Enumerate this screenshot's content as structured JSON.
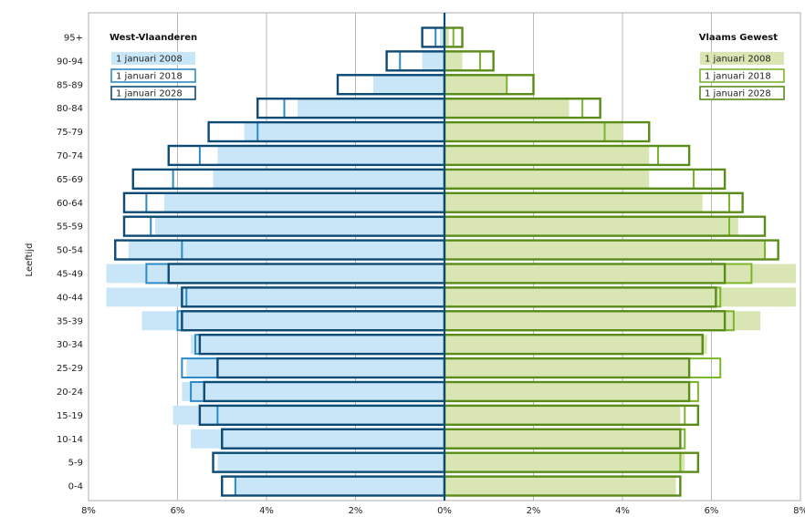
{
  "chart_data": {
    "type": "bar",
    "subtype": "population-pyramid",
    "ylabel": "Leeftijd",
    "categories": [
      "0-4",
      "5-9",
      "10-14",
      "15-19",
      "20-24",
      "25-29",
      "30-34",
      "35-39",
      "40-44",
      "45-49",
      "50-54",
      "55-59",
      "60-64",
      "65-69",
      "70-74",
      "75-79",
      "80-84",
      "85-89",
      "90-94",
      "95+"
    ],
    "x_ticks": [
      "8%",
      "6%",
      "4%",
      "2%",
      "0%",
      "2%",
      "4%",
      "6%",
      "8%"
    ],
    "xlim": [
      -8,
      8
    ],
    "grid": true,
    "left": {
      "title": "West-Vlaanderen",
      "legend_position": "top-left",
      "series": [
        {
          "name": "1 januari 2008",
          "style": "filled",
          "color": "#c9e6f8",
          "values": [
            4.7,
            5.1,
            5.7,
            6.1,
            5.9,
            5.8,
            5.7,
            6.8,
            7.6,
            7.6,
            7.1,
            6.5,
            6.3,
            5.2,
            5.1,
            4.5,
            3.3,
            1.6,
            0.5,
            0.1
          ]
        },
        {
          "name": "1 januari 2018",
          "style": "outline",
          "color": "#2c8bc6",
          "values": [
            4.7,
            5.2,
            5.0,
            5.1,
            5.7,
            5.9,
            5.6,
            6.0,
            5.8,
            6.7,
            5.9,
            6.6,
            6.7,
            6.1,
            5.5,
            4.2,
            3.6,
            2.4,
            1.0,
            0.2
          ]
        },
        {
          "name": "1 januari 2028",
          "style": "outline",
          "color": "#0d4a74",
          "values": [
            5.0,
            5.2,
            5.0,
            5.5,
            5.4,
            5.1,
            5.5,
            5.9,
            5.9,
            6.2,
            7.4,
            7.2,
            7.2,
            7.0,
            6.2,
            5.3,
            4.2,
            2.4,
            1.3,
            0.5
          ]
        }
      ]
    },
    "right": {
      "title": "Vlaams Gewest",
      "legend_position": "top-right",
      "series": [
        {
          "name": "1 januari 2008",
          "style": "filled",
          "color": "#d9e5b3",
          "values": [
            5.2,
            5.4,
            5.3,
            5.3,
            5.5,
            5.5,
            5.9,
            7.1,
            7.9,
            7.9,
            7.2,
            6.6,
            5.8,
            4.6,
            4.6,
            4.0,
            2.8,
            1.4,
            0.4,
            0.1
          ]
        },
        {
          "name": "1 januari 2018",
          "style": "outline",
          "color": "#7ab52a",
          "values": [
            5.3,
            5.3,
            5.4,
            5.4,
            5.7,
            6.2,
            5.8,
            6.5,
            6.2,
            6.9,
            7.2,
            6.4,
            6.4,
            5.6,
            4.8,
            3.6,
            3.1,
            1.4,
            0.8,
            0.2
          ]
        },
        {
          "name": "1 januari 2028",
          "style": "outline",
          "color": "#5a8c1a",
          "values": [
            5.3,
            5.7,
            5.3,
            5.7,
            5.5,
            5.5,
            5.8,
            6.3,
            6.1,
            6.3,
            7.5,
            7.2,
            6.7,
            6.3,
            5.5,
            4.6,
            3.5,
            2.0,
            1.1,
            0.4
          ]
        }
      ]
    }
  }
}
